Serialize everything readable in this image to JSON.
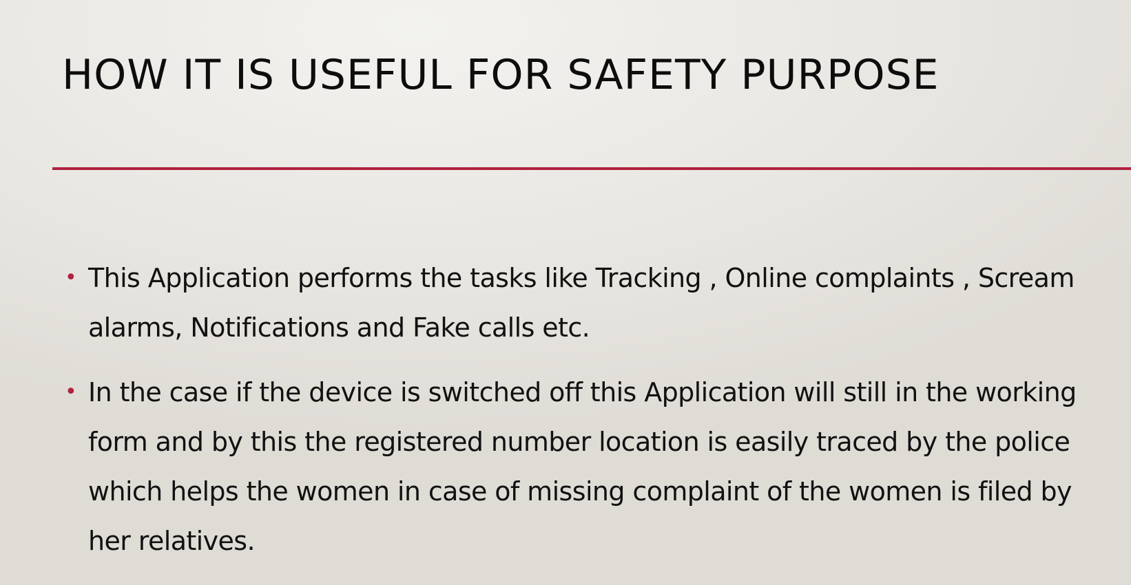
{
  "slide": {
    "title": "HOW IT IS USEFUL FOR SAFETY PURPOSE",
    "accent_color": "#b0213f",
    "bullet_glyph": "•",
    "bullets": [
      "This Application performs the tasks like Tracking , Online complaints , Scream alarms, Notifications and Fake calls etc.",
      "In the case if  the device is switched off this Application will still in the working form and by this the registered number location is easily traced by the police which helps the women in case of missing complaint of the women is filed by her relatives."
    ]
  }
}
